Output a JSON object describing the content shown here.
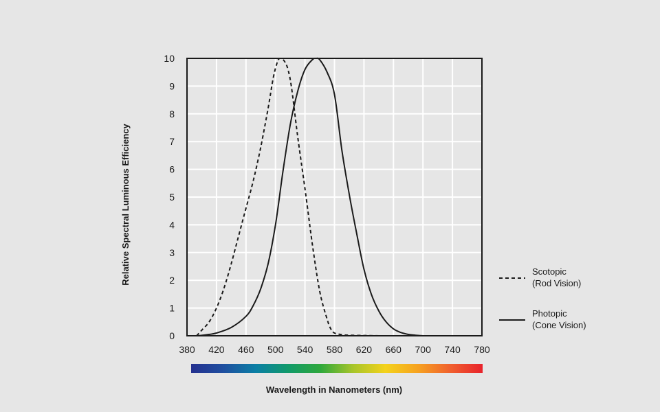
{
  "chart_data": {
    "type": "line",
    "xlabel": "Wavelength in Nanometers (nm)",
    "ylabel": "Relative Spectral Luminous Efficiency",
    "xlim": [
      380,
      780
    ],
    "ylim": [
      0,
      10
    ],
    "x_ticks": [
      380,
      420,
      460,
      500,
      540,
      580,
      620,
      660,
      700,
      740,
      780
    ],
    "y_ticks": [
      0,
      1,
      2,
      3,
      4,
      5,
      6,
      7,
      8,
      9,
      10
    ],
    "grid": true,
    "legend_position": "right",
    "spectrum_bar": {
      "xlim": [
        380,
        780
      ],
      "colors": [
        "#25318f",
        "#1f4fa0",
        "#0b7fa5",
        "#119a6a",
        "#2fa83c",
        "#a8c52a",
        "#f4d21b",
        "#f6a220",
        "#f0602e",
        "#e8232c"
      ]
    },
    "series": [
      {
        "name": "Scotopic",
        "name_line2": "(Rod Vision)",
        "style": "dashed",
        "color": "#1a1a1a",
        "x": [
          393,
          400,
          410,
          420,
          430,
          440,
          450,
          460,
          470,
          480,
          490,
          497,
          503,
          507,
          512,
          517,
          522,
          530,
          540,
          550,
          560,
          570,
          575,
          580,
          590,
          600,
          620,
          640,
          650
        ],
        "y": [
          0.0,
          0.2,
          0.5,
          1.0,
          1.7,
          2.6,
          3.6,
          4.6,
          5.6,
          6.8,
          8.2,
          9.3,
          9.9,
          10.0,
          9.9,
          9.6,
          8.9,
          7.2,
          5.3,
          3.3,
          1.6,
          0.6,
          0.25,
          0.1,
          0.04,
          0.02,
          0.01,
          0.0,
          0.0
        ]
      },
      {
        "name": "Photopic",
        "name_line2": "(Cone Vision)",
        "style": "solid",
        "color": "#1a1a1a",
        "x": [
          395,
          410,
          420,
          440,
          460,
          470,
          480,
          490,
          500,
          510,
          520,
          530,
          540,
          550,
          555,
          560,
          570,
          580,
          590,
          600,
          610,
          620,
          630,
          640,
          650,
          660,
          670,
          680,
          690,
          700
        ],
        "y": [
          0.0,
          0.05,
          0.1,
          0.3,
          0.7,
          1.1,
          1.7,
          2.6,
          4.0,
          5.9,
          7.6,
          8.8,
          9.6,
          9.95,
          10.0,
          9.95,
          9.5,
          8.7,
          6.7,
          5.1,
          3.7,
          2.4,
          1.5,
          0.9,
          0.5,
          0.25,
          0.12,
          0.05,
          0.02,
          0.0
        ]
      }
    ]
  }
}
